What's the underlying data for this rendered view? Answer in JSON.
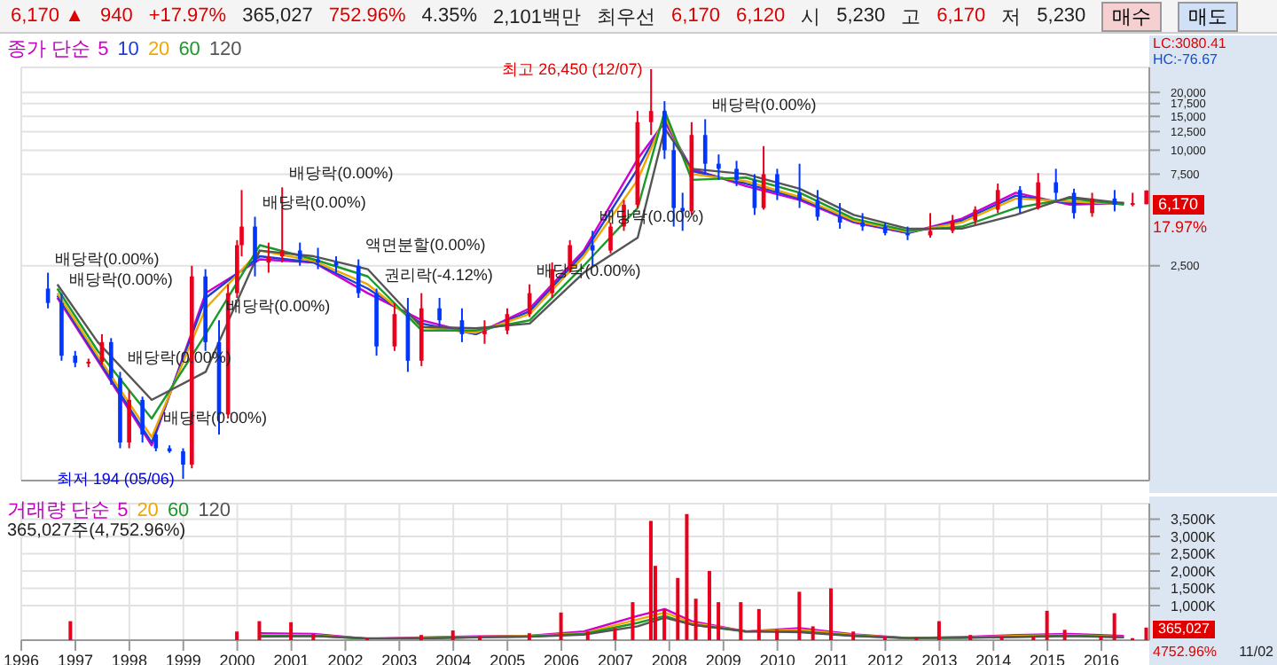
{
  "chart_data": [
    {
      "type": "other",
      "annotations": [
        "6,170 ▲",
        "940",
        "+17.97%",
        "365,027",
        "752.96%",
        "4.35%",
        "2,101백만",
        "최우선",
        "6,170",
        "6,120",
        "시",
        "5,230",
        "고",
        "6,170",
        "저",
        "5,230",
        "매수",
        "매도"
      ]
    },
    {
      "type": "candlestick",
      "legend": "top left",
      "legend_title": "종가 단순",
      "log": "y",
      "grid": true,
      "tick_labels": "y",
      "xlim": [
        "1996-01-01",
        "2016-11-20"
      ],
      "xticks": [
        "1996",
        "1997",
        "1998",
        "1999",
        "2000",
        "2001",
        "2002",
        "2003",
        "2004",
        "2005",
        "2006",
        "2007",
        "2008",
        "2009",
        "2010",
        "2011",
        "2012",
        "2013",
        "2014",
        "2015",
        "2016"
      ],
      "ylim": [
        190,
        27000
      ],
      "yticks": [
        {
          "value": 2500,
          "label": "2,500"
        },
        {
          "value": 7500,
          "label": "7,500"
        },
        {
          "value": 10000,
          "label": "10,000"
        },
        {
          "value": 12500,
          "label": "12,500"
        },
        {
          "value": 15000,
          "label": "15,000"
        },
        {
          "value": 17500,
          "label": "17,500"
        },
        {
          "value": 20000,
          "label": "20,000"
        }
      ],
      "x": [
        "1996-07",
        "1996-10",
        "1997-01",
        "1997-04",
        "1997-07",
        "1997-09",
        "1997-11",
        "1998-01",
        "1998-04",
        "1998-07",
        "1998-10",
        "1999-01",
        "1999-03",
        "1999-06",
        "1999-09",
        "1999-11",
        "2000-01",
        "2000-02",
        "2000-05",
        "2000-08",
        "2000-11",
        "2001-03",
        "2001-07",
        "2001-11",
        "2002-04",
        "2002-08",
        "2002-12",
        "2003-03",
        "2003-06",
        "2003-10",
        "2004-03",
        "2004-08",
        "2005-01",
        "2005-06",
        "2005-11",
        "2006-03",
        "2006-08",
        "2006-12",
        "2007-03",
        "2007-06",
        "2007-09",
        "2007-12",
        "2008-02",
        "2008-04",
        "2008-06",
        "2008-09",
        "2008-12",
        "2009-04",
        "2009-08",
        "2009-10",
        "2010-01",
        "2010-06",
        "2010-10",
        "2011-03",
        "2011-08",
        "2012-01",
        "2012-06",
        "2012-11",
        "2013-04",
        "2013-09",
        "2014-02",
        "2014-07",
        "2014-11",
        "2015-03",
        "2015-07",
        "2015-11",
        "2016-04",
        "2016-08",
        "2016-11-02"
      ],
      "ohlc": [
        [
          1900,
          2300,
          1500,
          1600
        ],
        [
          1600,
          1800,
          800,
          850
        ],
        [
          850,
          900,
          740,
          780
        ],
        [
          780,
          820,
          740,
          790
        ],
        [
          790,
          1100,
          760,
          1000
        ],
        [
          1000,
          1050,
          600,
          650
        ],
        [
          650,
          700,
          280,
          300
        ],
        [
          300,
          560,
          280,
          500
        ],
        [
          500,
          520,
          300,
          330
        ],
        [
          330,
          340,
          270,
          280
        ],
        [
          280,
          290,
          265,
          270
        ],
        [
          270,
          280,
          194,
          230
        ],
        [
          230,
          2500,
          220,
          2200
        ],
        [
          2200,
          2400,
          900,
          1000
        ],
        [
          1000,
          1300,
          330,
          420
        ],
        [
          420,
          2000,
          400,
          1800
        ],
        [
          1800,
          3400,
          1700,
          3200
        ],
        [
          3200,
          6200,
          2800,
          4000
        ],
        [
          4000,
          4500,
          2200,
          2600
        ],
        [
          2600,
          3300,
          2300,
          2800
        ],
        [
          2800,
          6400,
          2600,
          3000
        ],
        [
          3000,
          3300,
          2500,
          2700
        ],
        [
          2700,
          3100,
          2400,
          2600
        ],
        [
          2600,
          2800,
          2300,
          2500
        ],
        [
          2500,
          2700,
          1700,
          1800
        ],
        [
          1800,
          1900,
          850,
          950
        ],
        [
          950,
          1600,
          900,
          1400
        ],
        [
          1400,
          1700,
          700,
          800
        ],
        [
          800,
          1800,
          750,
          1500
        ],
        [
          1500,
          1700,
          1200,
          1300
        ],
        [
          1300,
          1500,
          1000,
          1100
        ],
        [
          1100,
          1300,
          980,
          1150
        ],
        [
          1150,
          1500,
          1100,
          1400
        ],
        [
          1400,
          2000,
          1350,
          1800
        ],
        [
          1800,
          2600,
          1700,
          2400
        ],
        [
          2400,
          3400,
          2300,
          3200
        ],
        [
          3200,
          3800,
          2500,
          3000
        ],
        [
          3000,
          4200,
          2900,
          4000
        ],
        [
          4000,
          5500,
          3800,
          5200
        ],
        [
          5200,
          16000,
          5000,
          14000
        ],
        [
          14000,
          26450,
          12000,
          16000
        ],
        [
          16000,
          18000,
          9000,
          10000
        ],
        [
          10000,
          11000,
          4000,
          5000
        ],
        [
          5000,
          6000,
          3800,
          4800
        ],
        [
          4800,
          14000,
          4600,
          12000
        ],
        [
          12000,
          14500,
          7500,
          8500
        ],
        [
          8500,
          9500,
          7000,
          8000
        ],
        [
          8000,
          8800,
          6500,
          7000
        ],
        [
          7000,
          7500,
          4600,
          5000
        ],
        [
          5000,
          10500,
          4900,
          7500
        ],
        [
          7500,
          8000,
          5500,
          6000
        ],
        [
          6000,
          8500,
          5000,
          5500
        ],
        [
          5500,
          6200,
          4300,
          4500
        ],
        [
          4500,
          5300,
          3900,
          4200
        ],
        [
          4200,
          4700,
          3800,
          4000
        ],
        [
          4000,
          4200,
          3600,
          3700
        ],
        [
          3700,
          4000,
          3400,
          3600
        ],
        [
          3600,
          4700,
          3500,
          3800
        ],
        [
          3800,
          4600,
          3700,
          4300
        ],
        [
          4300,
          5100,
          4100,
          4900
        ],
        [
          4900,
          6700,
          4700,
          6200
        ],
        [
          6200,
          6500,
          4700,
          5000
        ],
        [
          5000,
          7600,
          4900,
          6800
        ],
        [
          6800,
          8000,
          5500,
          6000
        ],
        [
          6000,
          6300,
          4400,
          4700
        ],
        [
          4700,
          6000,
          4500,
          5600
        ],
        [
          5600,
          6200,
          4800,
          5200
        ],
        [
          5200,
          6000,
          5100,
          5300
        ],
        [
          5230,
          6170,
          5230,
          6170
        ]
      ],
      "series": [
        {
          "type": "line",
          "name": "5",
          "color": "#d000d0",
          "x": [
            "1996-09",
            "1997-06",
            "1998-06",
            "1999-06",
            "2000-06",
            "2001-06",
            "2002-06",
            "2003-06",
            "2004-06",
            "2005-06",
            "2006-06",
            "2007-06",
            "2007-12",
            "2008-06",
            "2009-06",
            "2010-06",
            "2011-06",
            "2012-06",
            "2013-06",
            "2014-06",
            "2015-06",
            "2016-06"
          ],
          "values": [
            1700,
            800,
            290,
            1800,
            2700,
            2600,
            1800,
            1300,
            1100,
            1500,
            3000,
            9000,
            14000,
            8000,
            6500,
            5500,
            4200,
            3700,
            4400,
            6000,
            5200,
            5300
          ]
        },
        {
          "type": "line",
          "name": "10",
          "color": "#1f3fd0",
          "x": [
            "1996-09",
            "1997-06",
            "1998-06",
            "1999-06",
            "2000-06",
            "2001-06",
            "2002-06",
            "2003-06",
            "2004-06",
            "2005-06",
            "2006-06",
            "2007-06",
            "2007-12",
            "2008-06",
            "2009-06",
            "2010-06",
            "2011-06",
            "2012-06",
            "2013-06",
            "2014-06",
            "2015-06",
            "2016-06"
          ],
          "values": [
            1750,
            820,
            300,
            1700,
            2800,
            2600,
            1900,
            1250,
            1100,
            1450,
            2900,
            8000,
            14500,
            7800,
            6700,
            5600,
            4250,
            3700,
            4300,
            5800,
            5300,
            5300
          ]
        },
        {
          "type": "line",
          "name": "20",
          "color": "#f0a800",
          "x": [
            "1996-09",
            "1997-06",
            "1998-06",
            "1999-06",
            "2000-06",
            "2001-06",
            "2002-06",
            "2003-06",
            "2004-06",
            "2005-06",
            "2006-06",
            "2007-06",
            "2007-12",
            "2008-06",
            "2009-06",
            "2010-06",
            "2011-06",
            "2012-06",
            "2013-06",
            "2014-06",
            "2015-06",
            "2016-06"
          ],
          "values": [
            1800,
            850,
            320,
            1500,
            3000,
            2650,
            2000,
            1200,
            1120,
            1400,
            2800,
            7000,
            15000,
            7500,
            6900,
            5700,
            4300,
            3750,
            4200,
            5600,
            5400,
            5250
          ]
        },
        {
          "type": "line",
          "name": "60",
          "color": "#1a9a2a",
          "x": [
            "1996-09",
            "1997-06",
            "1998-06",
            "1999-06",
            "2000-06",
            "2001-06",
            "2002-06",
            "2003-06",
            "2004-06",
            "2005-06",
            "2006-06",
            "2007-06",
            "2007-12",
            "2008-06",
            "2009-06",
            "2010-06",
            "2011-06",
            "2012-06",
            "2013-06",
            "2014-06",
            "2015-06",
            "2016-06"
          ],
          "values": [
            1900,
            900,
            400,
            1100,
            3200,
            2700,
            2200,
            1150,
            1150,
            1300,
            2500,
            5000,
            16000,
            7000,
            7200,
            6000,
            4400,
            3800,
            4000,
            5000,
            5600,
            5200
          ]
        },
        {
          "type": "line",
          "name": "120",
          "color": "#555555",
          "x": [
            "1996-09",
            "1997-06",
            "1998-06",
            "1999-06",
            "2000-06",
            "2001-06",
            "2002-06",
            "2003-06",
            "2004-06",
            "2005-06",
            "2006-06",
            "2007-06",
            "2007-12",
            "2008-06",
            "2009-06",
            "2010-06",
            "2011-06",
            "2012-06",
            "2013-06",
            "2014-06",
            "2015-06",
            "2016-06"
          ],
          "values": [
            2000,
            1000,
            500,
            700,
            3000,
            2800,
            2400,
            1200,
            1180,
            1250,
            2300,
            3500,
            13000,
            8000,
            7500,
            6300,
            4600,
            3900,
            3900,
            4600,
            5700,
            5300
          ]
        }
      ],
      "annotations": [
        "LC:3080.41",
        "HC:-76.67",
        "6,170",
        "17.97%",
        {
          "text": "최고 26,450 (12/07)",
          "x": "2007-09",
          "y": 26450
        },
        {
          "text": "최저 194 (05/06)",
          "x": "1999-01",
          "y": 194
        },
        {
          "text": "배당락(0.00%)",
          "x": "1996-07",
          "y": 2300
        },
        {
          "text": "배당락(0.00%)",
          "x": "1996-10",
          "y": 1800
        },
        {
          "text": "배당락(0.00%)",
          "x": "1997-11",
          "y": 700
        },
        {
          "text": "배당락(0.00%)",
          "x": "1998-07",
          "y": 340
        },
        {
          "text": "배당락(0.00%)",
          "x": "1999-09",
          "y": 1300
        },
        {
          "text": "배당락(0.00%)",
          "x": "2000-05",
          "y": 4500
        },
        {
          "text": "배당락(0.00%)",
          "x": "2000-11",
          "y": 6400
        },
        {
          "text": "액면분할(0.00%)",
          "x": "2002-04",
          "y": 2700
        },
        {
          "text": "권리락(-4.12%)",
          "x": "2002-08",
          "y": 1900
        },
        {
          "text": "배당락(0.00%)",
          "x": "2005-06",
          "y": 2000
        },
        {
          "text": "배당락(0.00%)",
          "x": "2006-08",
          "y": 3800
        },
        {
          "text": "배당락(0.00%)",
          "x": "2008-09",
          "y": 14500
        }
      ]
    },
    {
      "type": "bar",
      "legend": "top left",
      "legend_title": "거래량 단순",
      "grid": true,
      "color": "#e8001c",
      "xlim": [
        "1996-01-01",
        "2016-11-20"
      ],
      "xticks": [
        "1996",
        "1997",
        "1998",
        "1999",
        "2000",
        "2001",
        "2002",
        "2003",
        "2004",
        "2005",
        "2006",
        "2007",
        "2008",
        "2009",
        "2010",
        "2011",
        "2012",
        "2013",
        "2014",
        "2015",
        "2016"
      ],
      "ylim": [
        0,
        3950
      ],
      "yticks": [
        {
          "value": 1000,
          "label": "1,000K"
        },
        {
          "value": 1500,
          "label": "1,500K"
        },
        {
          "value": 2000,
          "label": "2,000K"
        },
        {
          "value": 2500,
          "label": "2,500K"
        },
        {
          "value": 3000,
          "label": "3,000K"
        },
        {
          "value": 3500,
          "label": "3,500K"
        }
      ],
      "x": [
        "1996-12",
        "2000-01",
        "2000-06",
        "2001-01",
        "2001-06",
        "2002-06",
        "2003-06",
        "2004-01",
        "2004-07",
        "2005-06",
        "2006-01",
        "2006-07",
        "2007-01",
        "2007-05",
        "2007-09",
        "2007-10",
        "2007-12",
        "2008-03",
        "2008-05",
        "2008-07",
        "2008-10",
        "2008-12",
        "2009-05",
        "2009-09",
        "2010-01",
        "2010-06",
        "2010-09",
        "2011-01",
        "2011-06",
        "2012-01",
        "2012-08",
        "2013-01",
        "2013-08",
        "2014-03",
        "2014-10",
        "2015-01",
        "2015-05",
        "2016-01",
        "2016-04",
        "2016-08",
        "2016-11-02"
      ],
      "values": [
        550,
        250,
        550,
        520,
        180,
        60,
        150,
        280,
        120,
        200,
        800,
        250,
        350,
        1100,
        3450,
        2150,
        900,
        1800,
        3650,
        1200,
        2000,
        1100,
        1100,
        900,
        300,
        1400,
        400,
        1500,
        250,
        100,
        80,
        550,
        150,
        100,
        100,
        850,
        300,
        120,
        780,
        60,
        365.027
      ],
      "series": [
        {
          "type": "line",
          "name": "5",
          "color": "#d000d0",
          "x": [
            "2000-06",
            "2001-06",
            "2002-06",
            "2003-06",
            "2004-06",
            "2005-06",
            "2006-06",
            "2007-06",
            "2007-12",
            "2008-06",
            "2009-06",
            "2010-06",
            "2011-06",
            "2012-06",
            "2013-06",
            "2014-06",
            "2015-06",
            "2016-06"
          ],
          "values": [
            200,
            180,
            40,
            80,
            110,
            130,
            250,
            700,
            900,
            550,
            250,
            350,
            170,
            60,
            90,
            150,
            180,
            120
          ]
        },
        {
          "type": "line",
          "name": "20",
          "color": "#f0a800",
          "x": [
            "2000-06",
            "2001-06",
            "2002-06",
            "2003-06",
            "2004-06",
            "2005-06",
            "2006-06",
            "2007-06",
            "2007-12",
            "2008-06",
            "2009-06",
            "2010-06",
            "2011-06",
            "2012-06",
            "2013-06",
            "2014-06",
            "2015-06",
            "2016-06"
          ],
          "values": [
            150,
            150,
            40,
            60,
            100,
            120,
            200,
            600,
            800,
            500,
            250,
            300,
            150,
            60,
            80,
            120,
            150,
            100
          ]
        },
        {
          "type": "line",
          "name": "60",
          "color": "#1a9a2a",
          "x": [
            "2000-06",
            "2001-06",
            "2002-06",
            "2003-06",
            "2004-06",
            "2005-06",
            "2006-06",
            "2007-06",
            "2007-12",
            "2008-06",
            "2009-06",
            "2010-06",
            "2011-06",
            "2012-06",
            "2013-06",
            "2014-06",
            "2015-06",
            "2016-06"
          ],
          "values": [
            120,
            130,
            40,
            50,
            90,
            110,
            180,
            500,
            700,
            450,
            250,
            250,
            130,
            60,
            70,
            100,
            130,
            90
          ]
        },
        {
          "type": "line",
          "name": "120",
          "color": "#555555",
          "x": [
            "2000-06",
            "2001-06",
            "2002-06",
            "2003-06",
            "2004-06",
            "2005-06",
            "2006-06",
            "2007-06",
            "2007-12",
            "2008-06",
            "2009-06",
            "2010-06",
            "2011-06",
            "2012-06",
            "2013-06",
            "2014-06",
            "2015-06",
            "2016-06"
          ],
          "values": [
            100,
            120,
            50,
            50,
            80,
            100,
            160,
            400,
            650,
            450,
            260,
            230,
            120,
            60,
            70,
            90,
            120,
            80
          ]
        }
      ],
      "annotations": [
        "365,027주(4,752.96%)",
        "365,027",
        "4752.96%",
        "11/02"
      ]
    }
  ]
}
